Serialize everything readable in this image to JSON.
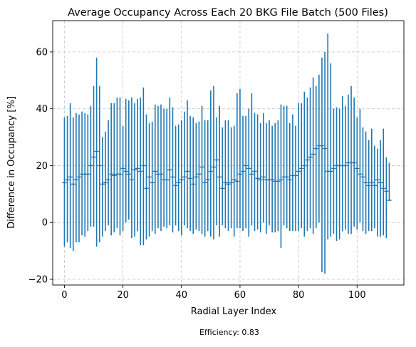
{
  "chart_data": {
    "type": "errorbar",
    "title": "Average Occupancy Across Each 20 BKG File Batch (500 Files)",
    "xlabel": "Radial Layer Index",
    "ylabel": "Difference in Occupancy [%]",
    "footnote": "Efficiency: 0.83",
    "xlim": [
      -4,
      116
    ],
    "ylim": [
      -22,
      71
    ],
    "xticks": [
      0,
      20,
      40,
      60,
      80,
      100
    ],
    "yticks": [
      -20,
      0,
      20,
      40,
      60
    ],
    "xtick_labels": [
      "0",
      "20",
      "40",
      "60",
      "80",
      "100"
    ],
    "ytick_labels": [
      "−20",
      "0",
      "20",
      "40",
      "60"
    ],
    "grid": true,
    "color": "#1f77b4",
    "series": [
      {
        "x": [
          0,
          1,
          2,
          3,
          4,
          5,
          6,
          7,
          8,
          9,
          10,
          11,
          12,
          13,
          14,
          15,
          16,
          17,
          18,
          19,
          20,
          21,
          22,
          23,
          24,
          25,
          26,
          27,
          28,
          29,
          30,
          31,
          32,
          33,
          34,
          35,
          36,
          37,
          38,
          39,
          40,
          41,
          42,
          43,
          44,
          45,
          46,
          47,
          48,
          49,
          50,
          51,
          52,
          53,
          54,
          55,
          56,
          57,
          58,
          59,
          60,
          61,
          62,
          63,
          64,
          65,
          66,
          67,
          68,
          69,
          70,
          71,
          72,
          73,
          74,
          75,
          76,
          77,
          78,
          79,
          80,
          81,
          82,
          83,
          84,
          85,
          86,
          87,
          88,
          89,
          90,
          91,
          92,
          93,
          94,
          95,
          96,
          97,
          98,
          99,
          100,
          101,
          102,
          103,
          104,
          105,
          106,
          107,
          108,
          109,
          110,
          111
        ],
        "y": [
          14,
          15,
          16,
          13.5,
          15,
          16,
          17,
          17,
          17,
          20,
          23,
          25,
          20,
          13.5,
          14,
          15,
          17,
          16.5,
          17,
          17,
          19,
          18,
          17,
          15,
          18.5,
          19,
          18,
          20,
          12,
          16,
          14,
          18,
          17,
          17,
          15,
          15,
          18.5,
          16,
          13,
          14,
          15,
          16,
          18,
          15.5,
          13.5,
          16,
          17,
          19.5,
          14,
          15,
          18,
          19.5,
          22,
          16,
          12,
          14,
          13.5,
          14,
          15,
          14.5,
          17,
          18,
          20,
          19,
          17,
          18,
          15.5,
          15,
          16,
          15,
          15,
          15,
          14.5,
          14.5,
          15,
          16,
          16,
          15,
          16.5,
          16.5,
          18,
          19,
          20,
          22,
          23,
          24,
          26,
          27,
          27,
          26,
          18,
          18,
          19,
          20,
          20,
          20,
          20,
          21,
          21,
          21,
          19,
          17,
          16,
          14,
          13,
          14,
          13,
          15,
          14,
          12,
          11,
          7.8
        ],
        "err_low": [
          -8.5,
          -7,
          -9,
          -10,
          -7,
          -7,
          -4.5,
          -5,
          -3,
          -1.5,
          -1.5,
          -8.5,
          -7,
          -5,
          -3,
          -1,
          -4.5,
          -3.5,
          -2,
          -4.5,
          -3,
          0,
          1,
          -5.5,
          -5,
          -3,
          -8,
          -8,
          -6,
          -5,
          -3,
          -4,
          -2,
          -3,
          -1.5,
          -2,
          -1,
          -3.5,
          -1,
          -3,
          -4.5,
          -1,
          -2,
          -3,
          -4,
          -2.5,
          -3,
          -4,
          -5,
          -3,
          -5,
          -6,
          -1,
          -5,
          -1,
          -2,
          -3,
          -2,
          -5,
          -2,
          -2,
          -3,
          -2,
          -5,
          -1,
          -3,
          -2.5,
          -3.5,
          0,
          -4,
          -1,
          -3.5,
          -3.5,
          -3,
          -9,
          -1,
          -2,
          -3,
          -3,
          -3,
          -3,
          -2,
          -5,
          -3,
          -2,
          -4,
          -2,
          0,
          -17.5,
          -18,
          -6,
          -5,
          -4,
          -6.5,
          -6,
          -3,
          -2.5,
          -4,
          -4,
          -1.5,
          -2.5,
          0,
          -3,
          -4,
          -3,
          -3,
          -2,
          -5,
          -5,
          -4.5,
          -5.5,
          7.8
        ],
        "err_high": [
          37,
          37.5,
          42,
          37,
          38.5,
          38,
          39,
          38.5,
          38,
          41,
          48,
          58,
          48,
          30,
          32,
          36,
          42,
          42,
          44,
          44,
          34,
          43.5,
          43,
          44,
          42,
          43.5,
          44,
          47.5,
          38,
          35,
          35.5,
          41.5,
          41,
          41.5,
          40,
          40,
          44,
          40.5,
          34,
          34.5,
          36,
          39,
          43,
          37.5,
          37,
          35,
          35.5,
          41,
          36,
          36,
          46.5,
          48,
          37,
          41,
          33.5,
          36,
          36,
          33.5,
          34,
          45.5,
          47,
          37.5,
          37.5,
          40,
          45.5,
          38.5,
          38,
          35,
          38.5,
          35,
          36,
          34,
          35,
          36,
          41.5,
          41,
          41,
          35,
          38,
          34,
          42,
          42,
          46,
          44,
          47.5,
          51,
          48,
          52,
          58,
          60,
          66.5,
          56,
          40,
          40.5,
          40,
          44.5,
          41,
          45,
          48,
          44,
          37,
          40,
          33.5,
          32,
          29,
          33,
          27,
          26,
          29,
          33,
          23,
          21
        ]
      }
    ]
  }
}
